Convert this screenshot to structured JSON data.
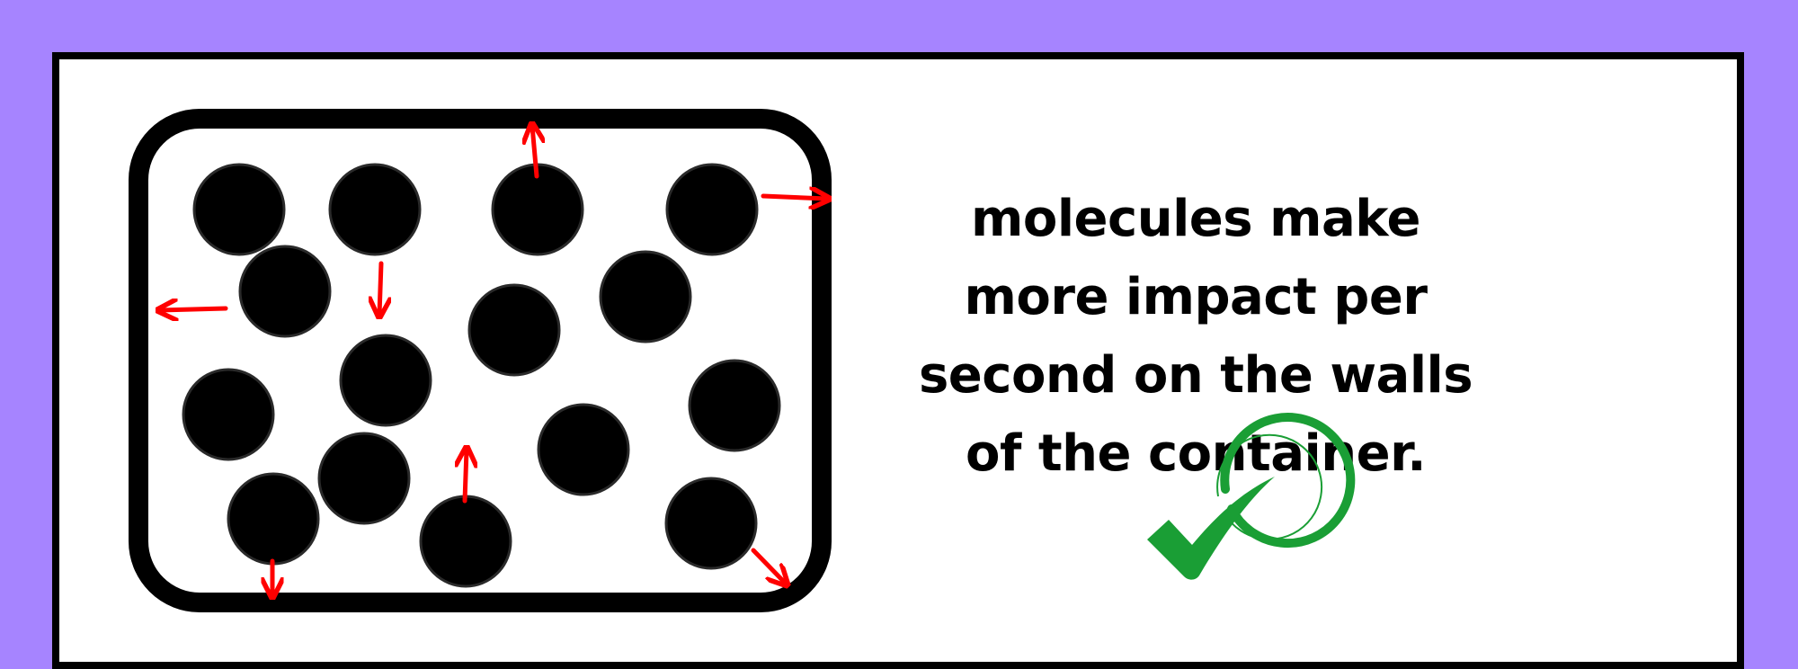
{
  "background_color": "#a684ff",
  "panel_color": "#ffffff",
  "molecule_color": "#000000",
  "arrow_color": "#ff0000",
  "check_color": "#1a9e35",
  "caption": {
    "line1": "molecules make",
    "line2": "more impact per",
    "line3": "second on the walls",
    "line4": "of the container."
  },
  "icons": {
    "check": "green-circled-checkmark-icon"
  }
}
